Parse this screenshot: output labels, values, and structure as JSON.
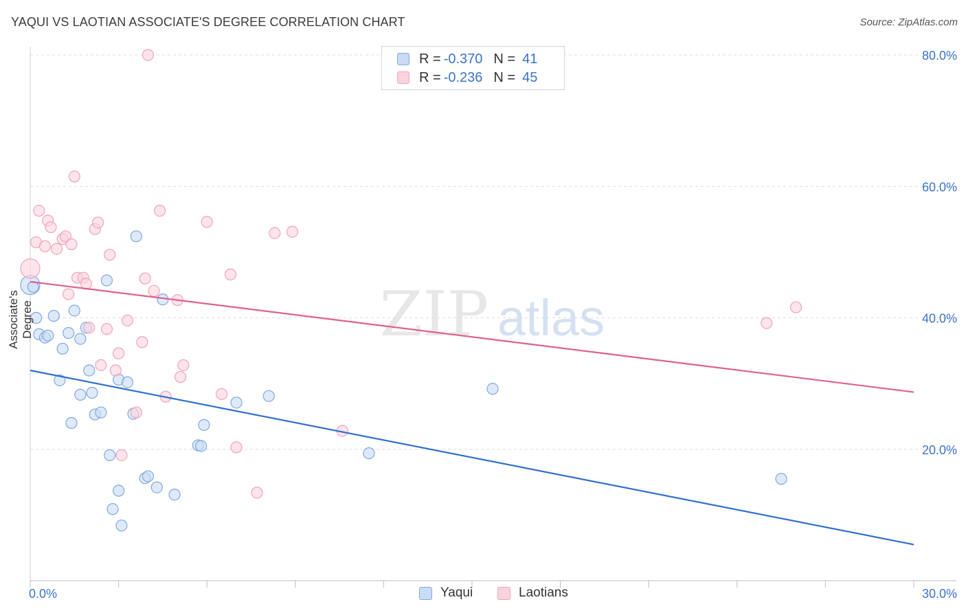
{
  "header": {
    "title": "YAQUI VS LAOTIAN ASSOCIATE'S DEGREE CORRELATION CHART",
    "source": "Source: ZipAtlas.com"
  },
  "watermark": {
    "zip": "ZIP",
    "atlas": "atlas"
  },
  "legend": {
    "rows": [
      {
        "r_label": "R =",
        "r_value": "-0.370",
        "n_label": "N =",
        "n_value": "41",
        "color": "#7fa8e0"
      },
      {
        "r_label": "R =",
        "r_value": "-0.236",
        "n_label": "N =",
        "n_value": "45",
        "color": "#f0a3b8"
      }
    ]
  },
  "bottom_legend": {
    "items": [
      "Yaqui",
      "Laotians"
    ]
  },
  "chart_data": {
    "type": "scatter",
    "ylabel": "Associate's Degree",
    "xlim": [
      0,
      30
    ],
    "ylim": [
      0,
      80
    ],
    "x_tick_labels": [
      "0.0%",
      "30.0%"
    ],
    "y_ticks": [
      20,
      40,
      60,
      80
    ],
    "y_tick_labels": [
      "20.0%",
      "40.0%",
      "60.0%",
      "80.0%"
    ],
    "grid": "horizontal dashed",
    "legend_position": "top-center",
    "series": [
      {
        "name": "Yaqui",
        "color": "#7fa8e0",
        "line_color": "#2f6fd0",
        "trend": {
          "x": [
            0,
            30
          ],
          "y": [
            32,
            5.5
          ]
        },
        "points": [
          [
            0.0,
            45.0
          ],
          [
            0.2,
            40.0
          ],
          [
            0.3,
            37.5
          ],
          [
            0.5,
            37.0
          ],
          [
            0.6,
            37.3
          ],
          [
            0.8,
            40.3
          ],
          [
            1.0,
            30.5
          ],
          [
            1.1,
            35.3
          ],
          [
            1.3,
            37.7
          ],
          [
            1.4,
            24.0
          ],
          [
            1.5,
            41.1
          ],
          [
            1.7,
            36.8
          ],
          [
            1.7,
            28.3
          ],
          [
            1.9,
            38.5
          ],
          [
            2.0,
            32.0
          ],
          [
            2.1,
            28.6
          ],
          [
            2.2,
            25.3
          ],
          [
            2.4,
            25.6
          ],
          [
            2.6,
            45.7
          ],
          [
            2.7,
            19.1
          ],
          [
            2.8,
            10.9
          ],
          [
            3.0,
            13.7
          ],
          [
            3.0,
            30.6
          ],
          [
            3.1,
            8.4
          ],
          [
            3.3,
            30.2
          ],
          [
            3.5,
            25.4
          ],
          [
            3.6,
            52.4
          ],
          [
            3.9,
            15.6
          ],
          [
            4.0,
            15.9
          ],
          [
            4.3,
            14.2
          ],
          [
            4.5,
            42.8
          ],
          [
            4.9,
            13.1
          ],
          [
            5.7,
            20.6
          ],
          [
            5.8,
            20.5
          ],
          [
            5.9,
            23.7
          ],
          [
            7.0,
            27.1
          ],
          [
            8.1,
            28.1
          ],
          [
            11.5,
            19.4
          ],
          [
            15.7,
            29.2
          ],
          [
            25.5,
            15.5
          ],
          [
            0.1,
            44.7
          ]
        ]
      },
      {
        "name": "Laotians",
        "color": "#f0a3b8",
        "line_color": "#e0608a",
        "trend": {
          "x": [
            0,
            30
          ],
          "y": [
            45.5,
            28.7
          ]
        },
        "points": [
          [
            0.0,
            47.5
          ],
          [
            0.2,
            51.5
          ],
          [
            0.3,
            56.3
          ],
          [
            0.5,
            50.9
          ],
          [
            0.6,
            54.8
          ],
          [
            0.7,
            53.8
          ],
          [
            0.9,
            50.5
          ],
          [
            1.1,
            52.0
          ],
          [
            1.2,
            52.4
          ],
          [
            1.3,
            43.6
          ],
          [
            1.4,
            51.2
          ],
          [
            1.5,
            61.5
          ],
          [
            1.6,
            46.1
          ],
          [
            1.8,
            46.1
          ],
          [
            1.9,
            45.2
          ],
          [
            2.0,
            38.5
          ],
          [
            2.2,
            53.5
          ],
          [
            2.3,
            54.5
          ],
          [
            2.4,
            32.8
          ],
          [
            2.6,
            38.3
          ],
          [
            2.7,
            49.6
          ],
          [
            2.9,
            32.0
          ],
          [
            3.0,
            34.6
          ],
          [
            3.1,
            19.1
          ],
          [
            3.3,
            39.6
          ],
          [
            3.6,
            25.6
          ],
          [
            3.8,
            36.3
          ],
          [
            3.9,
            46.0
          ],
          [
            4.0,
            80.0
          ],
          [
            4.2,
            44.1
          ],
          [
            4.4,
            56.3
          ],
          [
            4.6,
            28.0
          ],
          [
            5.0,
            42.7
          ],
          [
            5.1,
            31.0
          ],
          [
            5.2,
            32.8
          ],
          [
            6.0,
            54.6
          ],
          [
            6.5,
            28.4
          ],
          [
            6.8,
            46.6
          ],
          [
            7.0,
            20.3
          ],
          [
            7.7,
            13.4
          ],
          [
            8.3,
            52.9
          ],
          [
            8.9,
            53.1
          ],
          [
            10.6,
            22.8
          ],
          [
            25.0,
            39.2
          ],
          [
            26.0,
            41.6
          ]
        ]
      }
    ]
  }
}
